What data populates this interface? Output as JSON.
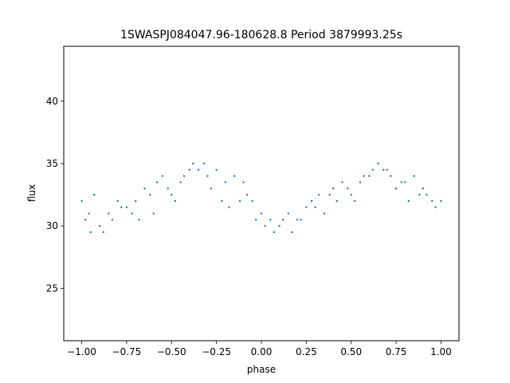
{
  "chart_data": {
    "type": "scatter",
    "title": "1SWASPJ084047.96-180628.8 Period 3879993.25s",
    "xlabel": "phase",
    "ylabel": "flux",
    "xlim": [
      -1.1,
      1.1
    ],
    "ylim": [
      20.8,
      44.4
    ],
    "xticks": [
      -1.0,
      -0.75,
      -0.5,
      -0.25,
      0.0,
      0.25,
      0.5,
      0.75,
      1.0
    ],
    "xtick_labels": [
      "−1.00",
      "−0.75",
      "−0.50",
      "−0.25",
      "0.00",
      "0.25",
      "0.50",
      "0.75",
      "1.00"
    ],
    "yticks": [
      25,
      30,
      35,
      40
    ],
    "ytick_labels": [
      "25",
      "30",
      "35",
      "40"
    ],
    "grid": false,
    "legend": "none",
    "marker_color": "#1f77b4",
    "series": [
      {
        "x": [
          -1.0,
          -0.98,
          -0.96,
          -0.95,
          -0.93,
          -0.9,
          -0.88,
          -0.85,
          -0.83,
          -0.8,
          -0.78,
          -0.75,
          -0.72,
          -0.7,
          -0.68,
          -0.65,
          -0.62,
          -0.6,
          -0.58,
          -0.55,
          -0.52,
          -0.5,
          -0.48,
          -0.45,
          -0.43,
          -0.4,
          -0.38,
          -0.35,
          -0.32,
          -0.3,
          -0.28,
          -0.25,
          -0.22,
          -0.2,
          -0.18,
          -0.15,
          -0.12,
          -0.1,
          -0.08,
          -0.05,
          -0.03,
          0.0,
          0.02,
          0.05,
          0.07,
          0.1,
          0.12,
          0.15,
          0.17,
          0.2,
          0.22,
          0.25,
          0.28,
          0.3,
          0.32,
          0.35,
          0.38,
          0.4,
          0.42,
          0.45,
          0.48,
          0.5,
          0.52,
          0.55,
          0.57,
          0.6,
          0.62,
          0.65,
          0.68,
          0.7,
          0.72,
          0.75,
          0.78,
          0.8,
          0.82,
          0.85,
          0.88,
          0.9,
          0.92,
          0.95,
          0.97,
          1.0
        ],
        "y": [
          32.0,
          30.5,
          31.0,
          29.5,
          32.5,
          30.0,
          29.5,
          31.0,
          30.5,
          32.0,
          31.5,
          31.5,
          31.0,
          32.0,
          30.5,
          33.0,
          32.5,
          31.0,
          33.5,
          34.0,
          33.0,
          32.5,
          32.0,
          33.5,
          34.0,
          34.5,
          35.0,
          34.5,
          35.0,
          34.0,
          33.0,
          34.5,
          32.0,
          33.5,
          31.5,
          34.0,
          32.0,
          33.5,
          32.5,
          32.0,
          30.5,
          31.0,
          30.0,
          30.5,
          29.5,
          30.0,
          30.5,
          31.0,
          29.5,
          30.5,
          30.5,
          31.5,
          32.0,
          31.5,
          32.5,
          31.0,
          32.5,
          33.0,
          32.0,
          33.5,
          33.0,
          32.5,
          32.0,
          33.5,
          34.0,
          34.0,
          34.5,
          35.0,
          34.5,
          34.5,
          34.0,
          33.0,
          33.5,
          33.5,
          32.0,
          34.0,
          32.5,
          33.0,
          32.5,
          32.0,
          31.5,
          32.0
        ]
      }
    ],
    "annotations": []
  }
}
